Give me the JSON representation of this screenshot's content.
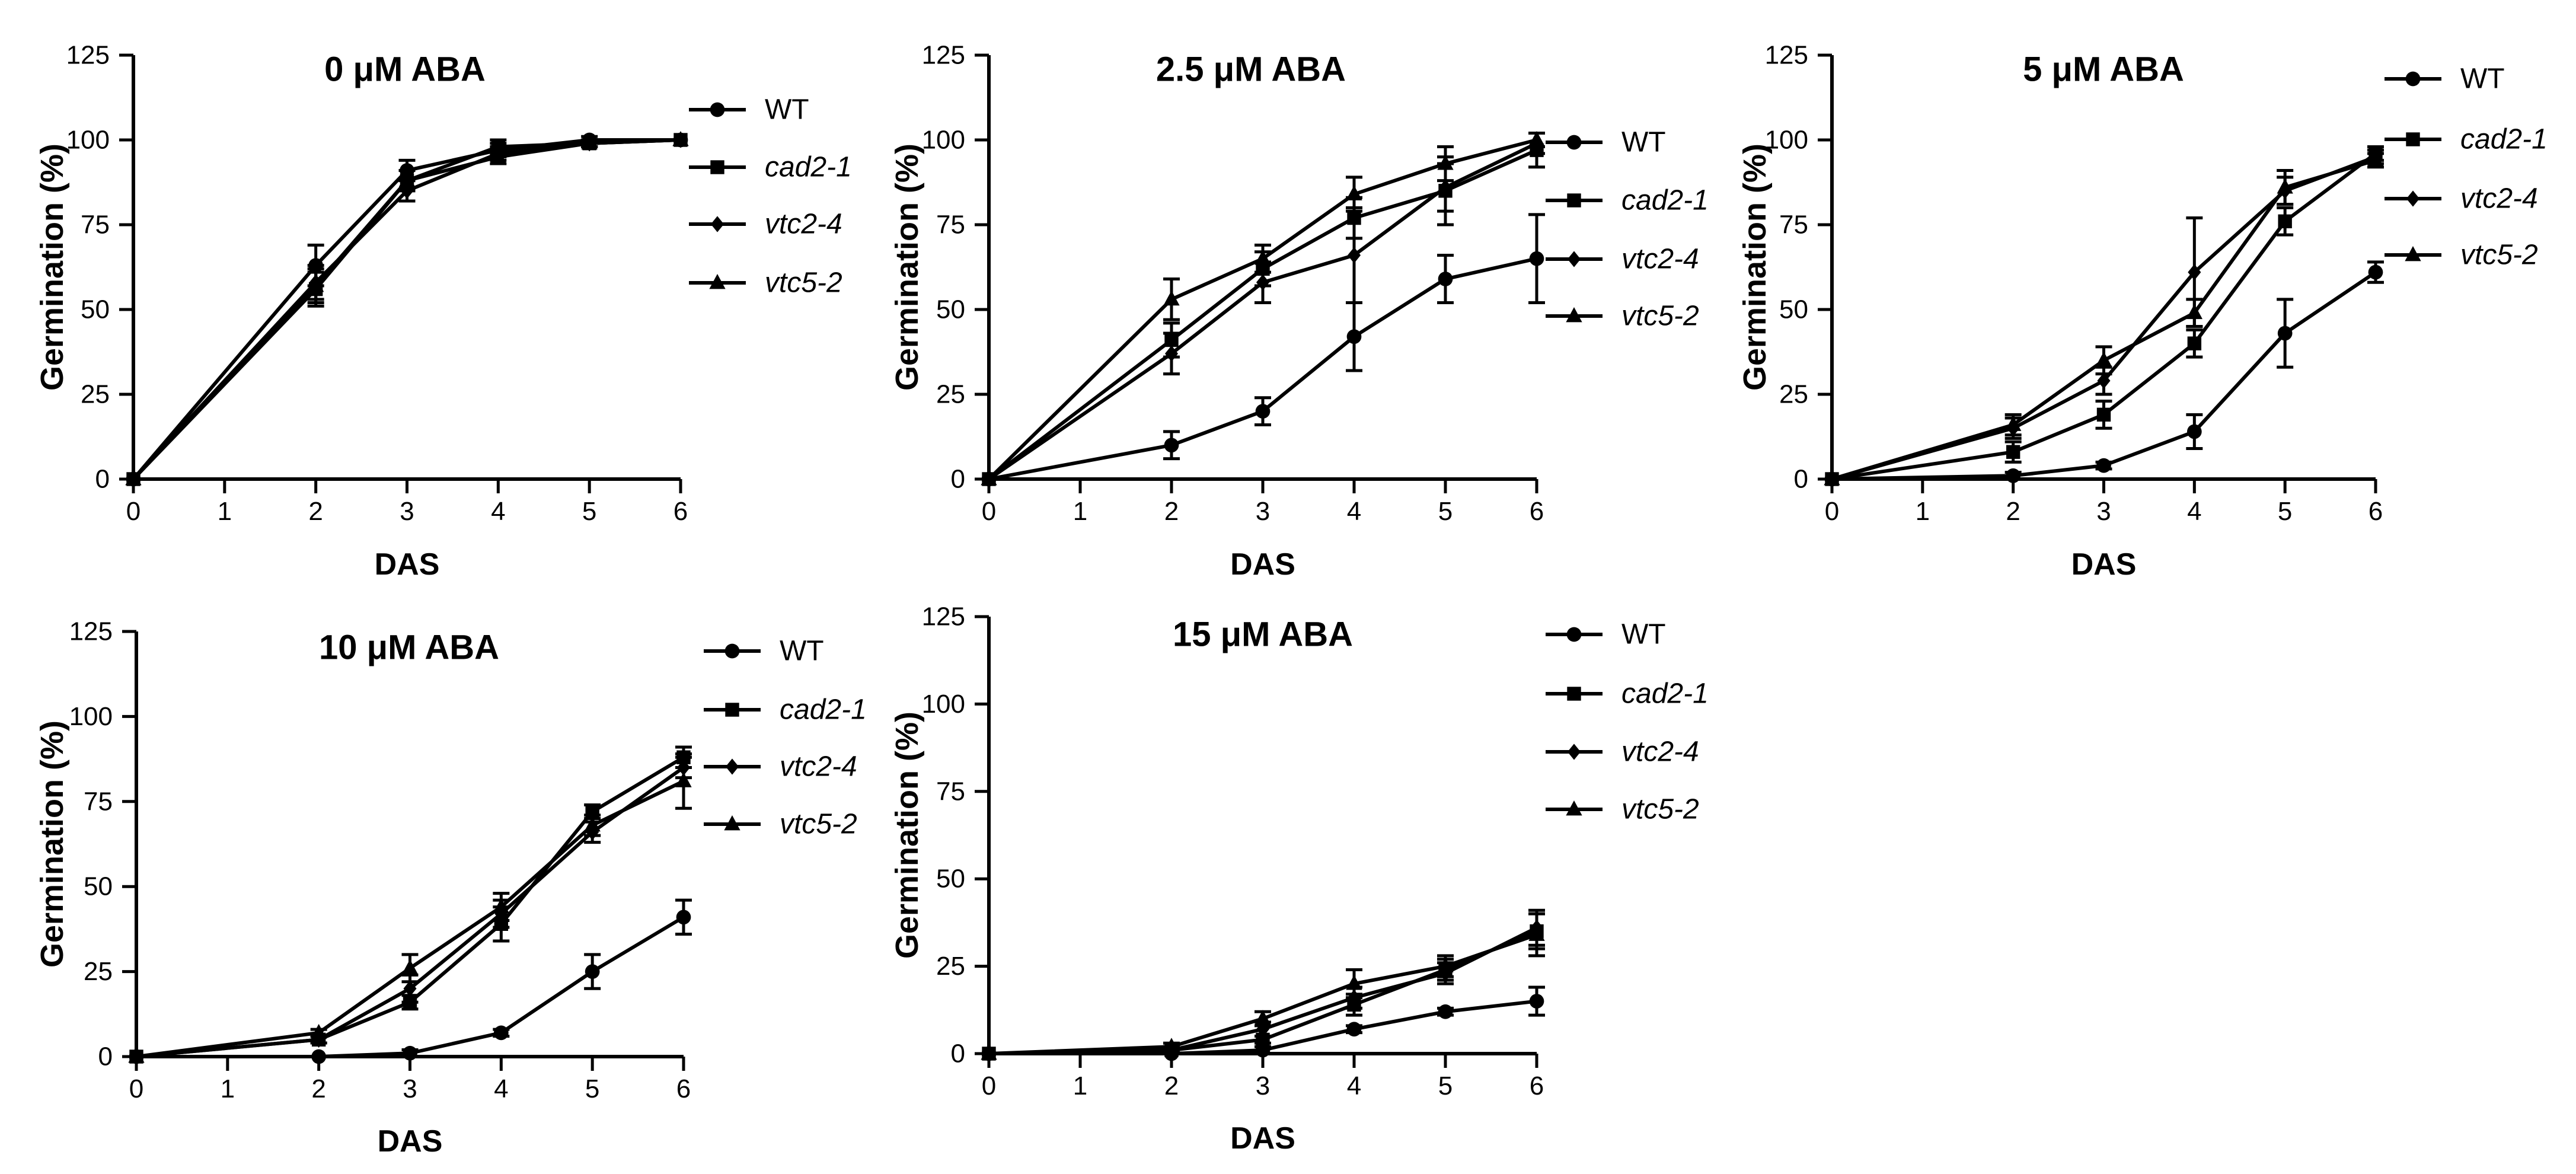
{
  "figure": {
    "xlabel": "DAS",
    "ylabel": "Germination (%)",
    "series_names": [
      "WT",
      "cad2-1",
      "vtc2-4",
      "vtc5-2"
    ],
    "series_markers": [
      "circle",
      "square",
      "diamond",
      "triangle"
    ],
    "colors": {
      "ink": "#000000",
      "background": "#ffffff"
    }
  },
  "chart_data": [
    {
      "type": "line",
      "title": "0 μM ABA",
      "xlabel": "DAS",
      "ylabel": "Germination (%)",
      "xlim": [
        0,
        6
      ],
      "ylim": [
        0,
        125
      ],
      "xticks": [
        0,
        1,
        2,
        3,
        4,
        5,
        6
      ],
      "yticks": [
        0,
        25,
        50,
        75,
        100,
        125
      ],
      "legend_position": "right",
      "x": [
        0,
        2,
        3,
        4,
        5,
        6
      ],
      "series": [
        {
          "name": "WT",
          "marker": "circle",
          "values": [
            0,
            63,
            91,
            97,
            100,
            100
          ],
          "errors": [
            0,
            6,
            3,
            2,
            1,
            0
          ]
        },
        {
          "name": "cad2-1",
          "marker": "square",
          "values": [
            0,
            56,
            88,
            98,
            99,
            100
          ],
          "errors": [
            0,
            5,
            3,
            2,
            1,
            0
          ]
        },
        {
          "name": "vtc2-4",
          "marker": "diamond",
          "values": [
            0,
            58,
            85,
            96,
            99,
            100
          ],
          "errors": [
            0,
            5,
            3,
            2,
            1,
            0
          ]
        },
        {
          "name": "vtc5-2",
          "marker": "triangle",
          "values": [
            0,
            57,
            88,
            95,
            99,
            100
          ],
          "errors": [
            0,
            5,
            3,
            2,
            1,
            0
          ]
        }
      ]
    },
    {
      "type": "line",
      "title": "2.5 μM ABA",
      "xlabel": "DAS",
      "ylabel": "Germination (%)",
      "xlim": [
        0,
        6
      ],
      "ylim": [
        0,
        125
      ],
      "xticks": [
        0,
        1,
        2,
        3,
        4,
        5,
        6
      ],
      "yticks": [
        0,
        25,
        50,
        75,
        100,
        125
      ],
      "legend_position": "right",
      "x": [
        0,
        2,
        3,
        4,
        5,
        6
      ],
      "series": [
        {
          "name": "WT",
          "marker": "circle",
          "values": [
            0,
            10,
            20,
            42,
            59,
            65
          ],
          "errors": [
            0,
            4,
            4,
            10,
            7,
            13
          ]
        },
        {
          "name": "cad2-1",
          "marker": "square",
          "values": [
            0,
            41,
            62,
            77,
            85,
            97
          ],
          "errors": [
            0,
            5,
            5,
            6,
            10,
            5
          ]
        },
        {
          "name": "vtc2-4",
          "marker": "diamond",
          "values": [
            0,
            37,
            58,
            66,
            86,
            99
          ],
          "errors": [
            0,
            6,
            6,
            14,
            7,
            3
          ]
        },
        {
          "name": "vtc5-2",
          "marker": "triangle",
          "values": [
            0,
            53,
            65,
            84,
            93,
            100
          ],
          "errors": [
            0,
            6,
            4,
            5,
            5,
            2
          ]
        }
      ]
    },
    {
      "type": "line",
      "title": "5 μM ABA",
      "xlabel": "DAS",
      "ylabel": "Germination (%)",
      "xlim": [
        0,
        6
      ],
      "ylim": [
        0,
        125
      ],
      "xticks": [
        0,
        1,
        2,
        3,
        4,
        5,
        6
      ],
      "yticks": [
        0,
        25,
        50,
        75,
        100,
        125
      ],
      "legend_position": "top-right",
      "x": [
        0,
        2,
        3,
        4,
        5,
        6
      ],
      "series": [
        {
          "name": "WT",
          "marker": "circle",
          "values": [
            0,
            1,
            4,
            14,
            43,
            61
          ],
          "errors": [
            0,
            1,
            1,
            5,
            10,
            3
          ]
        },
        {
          "name": "cad2-1",
          "marker": "square",
          "values": [
            0,
            8,
            19,
            40,
            76,
            96
          ],
          "errors": [
            0,
            3,
            4,
            4,
            4,
            2
          ]
        },
        {
          "name": "vtc2-4",
          "marker": "diamond",
          "values": [
            0,
            15,
            29,
            61,
            85,
            95
          ],
          "errors": [
            0,
            3,
            4,
            16,
            4,
            2
          ]
        },
        {
          "name": "vtc5-2",
          "marker": "triangle",
          "values": [
            0,
            16,
            35,
            49,
            86,
            94
          ],
          "errors": [
            0,
            3,
            4,
            4,
            5,
            2
          ]
        }
      ]
    },
    {
      "type": "line",
      "title": "10 μM ABA",
      "xlabel": "DAS",
      "ylabel": "Germination (%)",
      "xlim": [
        0,
        6
      ],
      "ylim": [
        0,
        125
      ],
      "xticks": [
        0,
        1,
        2,
        3,
        4,
        5,
        6
      ],
      "yticks": [
        0,
        25,
        50,
        75,
        100,
        125
      ],
      "legend_position": "right",
      "x": [
        0,
        2,
        3,
        4,
        5,
        6
      ],
      "series": [
        {
          "name": "WT",
          "marker": "circle",
          "values": [
            0,
            0,
            1,
            7,
            25,
            41
          ],
          "errors": [
            0,
            0,
            1,
            1,
            5,
            5
          ]
        },
        {
          "name": "cad2-1",
          "marker": "square",
          "values": [
            0,
            5,
            16,
            39,
            72,
            88
          ],
          "errors": [
            0,
            1,
            2,
            5,
            2,
            3
          ]
        },
        {
          "name": "vtc2-4",
          "marker": "diamond",
          "values": [
            0,
            5,
            20,
            42,
            66,
            85
          ],
          "errors": [
            0,
            1,
            4,
            4,
            3,
            3
          ]
        },
        {
          "name": "vtc5-2",
          "marker": "triangle",
          "values": [
            0,
            7,
            26,
            44,
            68,
            81
          ],
          "errors": [
            0,
            1,
            4,
            4,
            3,
            8
          ]
        }
      ]
    },
    {
      "type": "line",
      "title": "15 μM ABA",
      "xlabel": "DAS",
      "ylabel": "Germination (%)",
      "xlim": [
        0,
        6
      ],
      "ylim": [
        0,
        125
      ],
      "xticks": [
        0,
        1,
        2,
        3,
        4,
        5,
        6
      ],
      "yticks": [
        0,
        25,
        50,
        75,
        100,
        125
      ],
      "legend_position": "right",
      "x": [
        0,
        2,
        3,
        4,
        5,
        6
      ],
      "series": [
        {
          "name": "WT",
          "marker": "circle",
          "values": [
            0,
            0,
            1,
            7,
            12,
            15
          ],
          "errors": [
            0,
            0,
            1,
            1,
            1,
            4
          ]
        },
        {
          "name": "cad2-1",
          "marker": "square",
          "values": [
            0,
            1,
            4,
            14,
            24,
            35
          ],
          "errors": [
            0,
            1,
            1,
            3,
            3,
            5
          ]
        },
        {
          "name": "vtc2-4",
          "marker": "diamond",
          "values": [
            0,
            1,
            7,
            16,
            23,
            36
          ],
          "errors": [
            0,
            1,
            2,
            3,
            3,
            5
          ]
        },
        {
          "name": "vtc5-2",
          "marker": "triangle",
          "values": [
            0,
            2,
            10,
            20,
            25,
            34
          ],
          "errors": [
            0,
            1,
            2,
            4,
            3,
            6
          ]
        }
      ]
    }
  ]
}
